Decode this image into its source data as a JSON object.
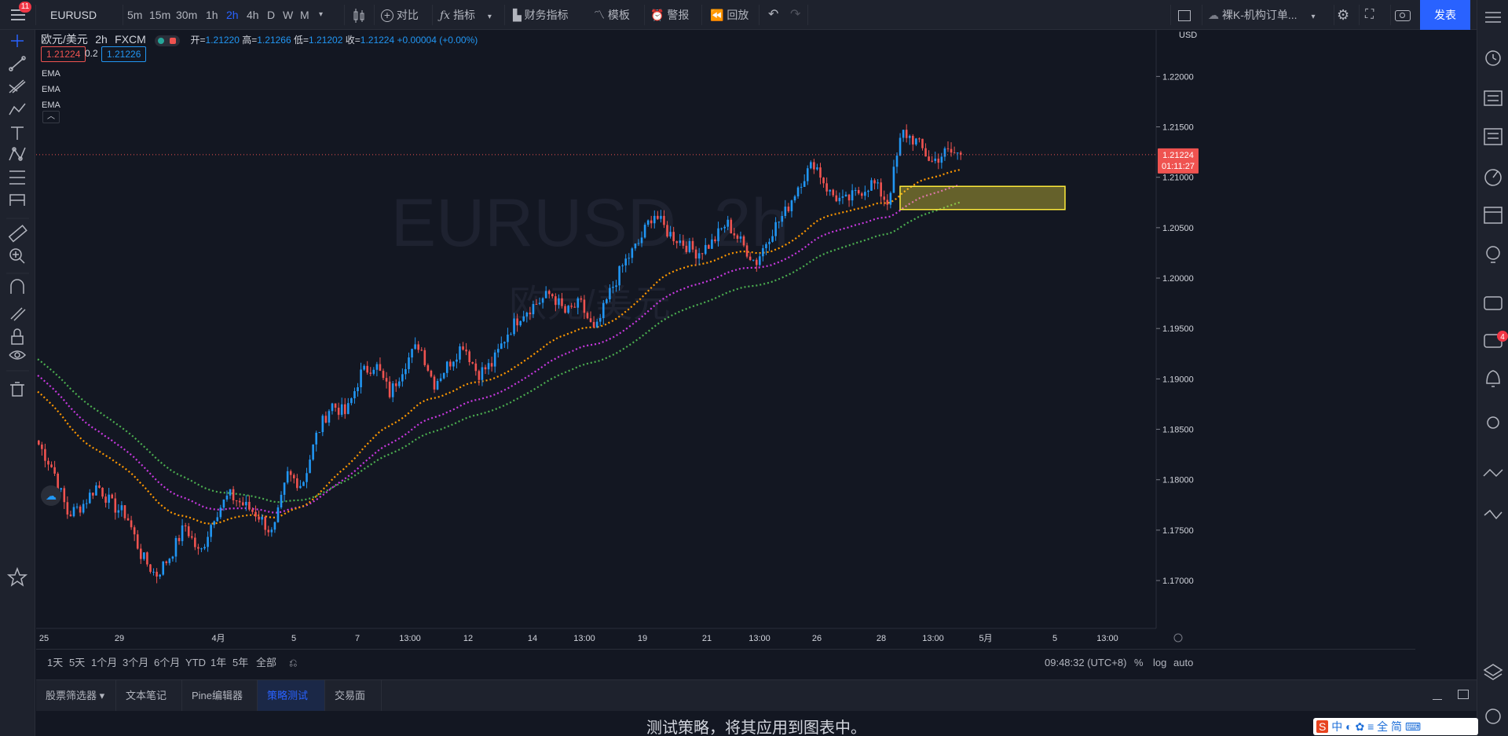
{
  "topbar": {
    "notif_count": "11",
    "symbol": "EURUSD",
    "intervals": [
      "5m",
      "15m",
      "30m",
      "1h",
      "2h",
      "4h",
      "D",
      "W",
      "M"
    ],
    "active_interval": "2h",
    "compare_label": "对比",
    "indicators_label": "指标",
    "financials_label": "财务指标",
    "templates_label": "模板",
    "alert_label": "警报",
    "replay_label": "回放",
    "layout_name": "裸K-机构订单...",
    "publish_label": "发表"
  },
  "legend": {
    "title": "欧元/美元",
    "interval": "2h",
    "source": "FXCM",
    "open_label": "开=",
    "open": "1.21220",
    "high_label": "高=",
    "high": "1.21266",
    "low_label": "低=",
    "low": "1.21202",
    "close_label": "收=",
    "close": "1.21224",
    "change": "+0.00004 (+0.00%)",
    "bid": "1.21224",
    "spread": "0.2",
    "ask": "1.21226",
    "indicators": [
      "EMA",
      "EMA",
      "EMA"
    ]
  },
  "watermark": {
    "symbol": "EURUSD, 2h",
    "name": "欧元/美元"
  },
  "price_axis": {
    "currency": "USD",
    "ticks": [
      "1.22000",
      "1.21500",
      "1.21000",
      "1.20500",
      "1.20000",
      "1.19500",
      "1.19000",
      "1.18500",
      "1.18000",
      "1.17500",
      "1.17000"
    ],
    "last_price": "1.21224",
    "countdown": "01:11:27"
  },
  "time_axis": {
    "ticks": [
      "25",
      "29",
      "4月",
      "5",
      "7",
      "13:00",
      "12",
      "14",
      "13:00",
      "19",
      "21",
      "13:00",
      "26",
      "28",
      "13:00",
      "5月",
      "5",
      "13:00"
    ]
  },
  "colors": {
    "up": "#2196f3",
    "down": "#ef5350",
    "ema_fast": "#ff9800",
    "ema_mid": "#c839e0",
    "ema_slow": "#4caf50",
    "zone": "#ffeb3b"
  },
  "chart_data": {
    "type": "candlestick",
    "symbol": "EURUSD",
    "ylim": [
      1.1665,
      1.224
    ],
    "close_path": [
      1.1835,
      1.181,
      1.1765,
      1.1775,
      1.1795,
      1.1775,
      1.1765,
      1.1725,
      1.1705,
      1.1725,
      1.1755,
      1.1725,
      1.1765,
      1.1785,
      1.1775,
      1.1765,
      1.1745,
      1.1805,
      1.1795,
      1.1845,
      1.1875,
      1.1865,
      1.1905,
      1.1915,
      1.1885,
      1.1915,
      1.1935,
      1.1895,
      1.1915,
      1.1935,
      1.1905,
      1.1915,
      1.1945,
      1.1965,
      1.1975,
      1.1985,
      1.1965,
      1.1975,
      1.1945,
      1.1985,
      1.2015,
      1.2035,
      1.2065,
      1.2045,
      1.2035,
      1.2025,
      1.2035,
      1.2055,
      1.2035,
      1.2015,
      1.2045,
      1.2065,
      1.2095,
      1.2115,
      1.2085,
      1.2075,
      1.2085,
      1.2095,
      1.2075,
      1.2145,
      1.2135,
      1.2115,
      1.2125,
      1.21224
    ],
    "ema_fast_end": 1.2088,
    "ema_mid_end": 1.2072,
    "ema_slow_end": 1.2054,
    "zone": [
      1.2068,
      1.2091
    ]
  },
  "range": {
    "buttons": [
      "1天",
      "5天",
      "1个月",
      "3个月",
      "6个月",
      "YTD",
      "1年",
      "5年",
      "全部"
    ],
    "clock": "09:48:32 (UTC+8)",
    "opt_percent": "%",
    "opt_log": "log",
    "opt_auto": "auto"
  },
  "panel": {
    "tabs": [
      "股票筛选器",
      "文本笔记",
      "Pine编辑器",
      "策略测试器",
      "交易面板"
    ],
    "active_tab": "策略测试器",
    "message": "测试策略，将其应用到图表中。"
  },
  "ime": {
    "text": "中 ◐ ✿ ≡ 全 简 ⌨"
  },
  "sidebar": {
    "chat_badge": "4"
  }
}
